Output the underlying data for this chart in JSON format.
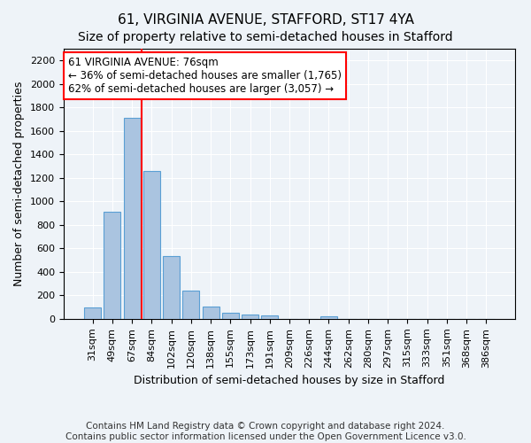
{
  "title": "61, VIRGINIA AVENUE, STAFFORD, ST17 4YA",
  "subtitle": "Size of property relative to semi-detached houses in Stafford",
  "xlabel": "Distribution of semi-detached houses by size in Stafford",
  "ylabel": "Number of semi-detached properties",
  "categories": [
    "31sqm",
    "49sqm",
    "67sqm",
    "84sqm",
    "102sqm",
    "120sqm",
    "138sqm",
    "155sqm",
    "173sqm",
    "191sqm",
    "209sqm",
    "226sqm",
    "244sqm",
    "262sqm",
    "280sqm",
    "297sqm",
    "315sqm",
    "333sqm",
    "351sqm",
    "368sqm",
    "386sqm"
  ],
  "values": [
    95,
    910,
    1710,
    1260,
    535,
    240,
    105,
    50,
    35,
    28,
    0,
    0,
    22,
    0,
    0,
    0,
    0,
    0,
    0,
    0,
    0
  ],
  "bar_color": "#aac4e0",
  "bar_edge_color": "#5a9fd4",
  "vline_x_index": 2.5,
  "vline_color": "red",
  "annotation_line1": "61 VIRGINIA AVENUE: 76sqm",
  "annotation_line2": "← 36% of semi-detached houses are smaller (1,765)",
  "annotation_line3": "62% of semi-detached houses are larger (3,057) →",
  "annotation_box_color": "white",
  "annotation_box_edge_color": "red",
  "ylim": [
    0,
    2300
  ],
  "yticks": [
    0,
    200,
    400,
    600,
    800,
    1000,
    1200,
    1400,
    1600,
    1800,
    2000,
    2200
  ],
  "footer": "Contains HM Land Registry data © Crown copyright and database right 2024.\nContains public sector information licensed under the Open Government Licence v3.0.",
  "bg_color": "#eef3f8",
  "plot_bg_color": "#eef3f8",
  "grid_color": "white",
  "title_fontsize": 11,
  "subtitle_fontsize": 10,
  "label_fontsize": 9,
  "tick_fontsize": 8,
  "footer_fontsize": 7.5,
  "annotation_fontsize": 8.5
}
